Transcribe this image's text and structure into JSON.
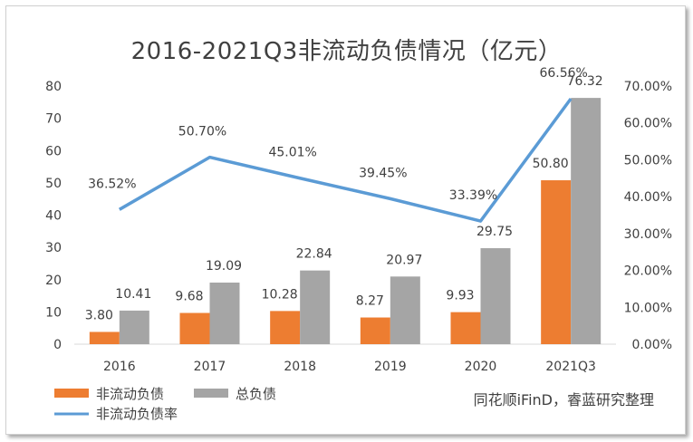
{
  "title": "2016-2021Q3非流动负债情况（亿元）",
  "source_note": "同花顺iFinD，睿蓝研究整理",
  "colors": {
    "bar1": "#ED7D31",
    "bar2": "#A5A5A5",
    "line": "#5B9BD5"
  },
  "chart_data": {
    "type": "bar",
    "categories": [
      "2016",
      "2017",
      "2018",
      "2019",
      "2020",
      "2021Q3"
    ],
    "series": [
      {
        "name": "非流动负债",
        "type": "bar",
        "axis": "left",
        "values": [
          3.8,
          9.68,
          10.28,
          8.27,
          9.93,
          50.8
        ],
        "labels": [
          "3.80",
          "9.68",
          "10.28",
          "8.27",
          "9.93",
          "50.80"
        ]
      },
      {
        "name": "总负债",
        "type": "bar",
        "axis": "left",
        "values": [
          10.41,
          19.09,
          22.84,
          20.97,
          29.75,
          76.32
        ],
        "labels": [
          "10.41",
          "19.09",
          "22.84",
          "20.97",
          "29.75",
          "76.32"
        ]
      },
      {
        "name": "非流动负债率",
        "type": "line",
        "axis": "right",
        "values": [
          36.52,
          50.7,
          45.01,
          39.45,
          33.39,
          66.56
        ],
        "labels": [
          "36.52%",
          "50.70%",
          "45.01%",
          "39.45%",
          "33.39%",
          "66.56%"
        ]
      }
    ],
    "y_left": {
      "min": 0,
      "max": 80,
      "ticks": [
        "0",
        "10",
        "20",
        "30",
        "40",
        "50",
        "60",
        "70",
        "80"
      ]
    },
    "y_right": {
      "min": 0,
      "max": 70,
      "ticks": [
        "0.00%",
        "10.00%",
        "20.00%",
        "30.00%",
        "40.00%",
        "50.00%",
        "60.00%",
        "70.00%"
      ]
    },
    "grid": false,
    "legend_position": "bottom-left"
  }
}
